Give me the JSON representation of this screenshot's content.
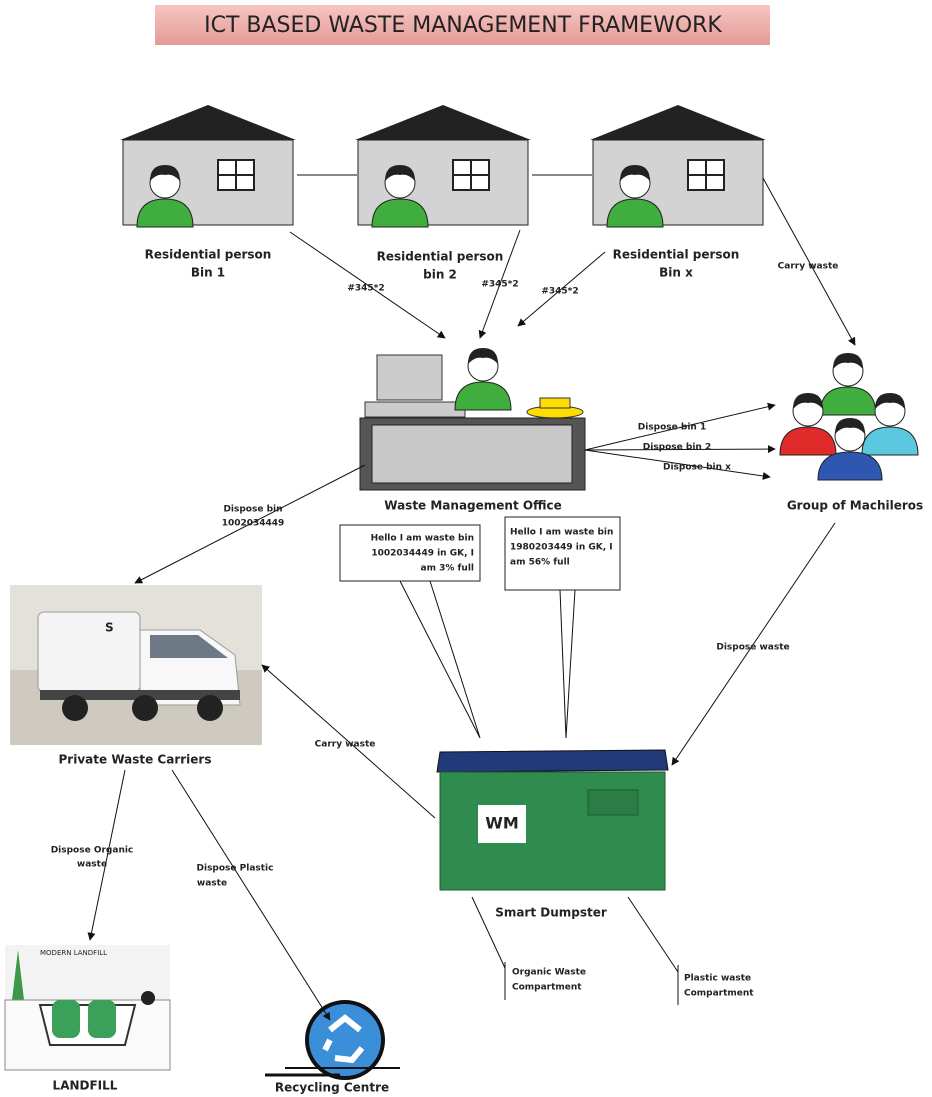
{
  "title": "ICT BASED WASTE MANAGEMENT FRAMEWORK",
  "houses": [
    {
      "label": [
        "Residential person",
        "Bin 1"
      ]
    },
    {
      "label": [
        "Residential person",
        "bin 2"
      ]
    },
    {
      "label": [
        "Residential person",
        "Bin x"
      ]
    }
  ],
  "office": {
    "label": "Waste Management Office"
  },
  "machileros": {
    "label": "Group of Machileros"
  },
  "truck": {
    "label": "Private Waste Carriers"
  },
  "dumpster": {
    "label": "Smart Dumpster",
    "logo": "WM",
    "compartments": [
      [
        "Organic Waste",
        "Compartment"
      ],
      [
        "Plastic waste",
        "Compartment"
      ]
    ]
  },
  "landfill": {
    "label": "LANDFILL",
    "caption": "MODERN LANDFILL"
  },
  "recycling": {
    "label": "Recycling Centre"
  },
  "messages": [
    [
      "Hello I am waste bin",
      "1002034449 in GK, I",
      "am 3% full"
    ],
    [
      "Hello I am waste bin",
      "1980203449 in GK, I",
      "am 56% full"
    ]
  ],
  "edges": [
    {
      "label": [
        "#345*2"
      ]
    },
    {
      "label": [
        "#345*2"
      ]
    },
    {
      "label": [
        "#345*2"
      ]
    },
    {
      "label": [
        "Carry waste"
      ]
    },
    {
      "label": [
        "Dispose bin 1"
      ]
    },
    {
      "label": [
        "Dispose bin 2"
      ]
    },
    {
      "label": [
        "Dispose bin x"
      ]
    },
    {
      "label": [
        "Dispose bin",
        "1002034449"
      ]
    },
    {
      "label": [
        "Dispose waste"
      ]
    },
    {
      "label": [
        "Carry waste"
      ]
    },
    {
      "label": [
        "Dispose Organic",
        "waste"
      ]
    },
    {
      "label": [
        "Dispose Plastic",
        "waste"
      ]
    }
  ]
}
